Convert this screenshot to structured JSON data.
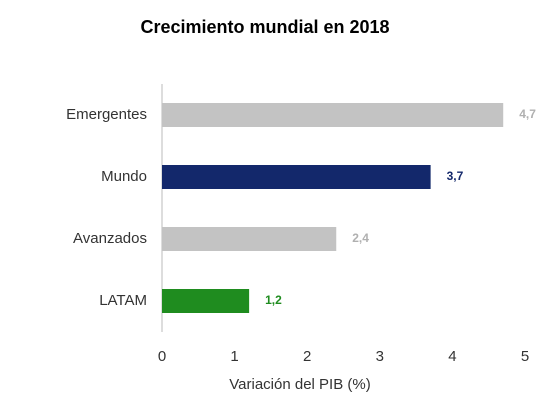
{
  "chart_data": {
    "type": "bar",
    "orientation": "horizontal",
    "title": "Crecimiento mundial en 2018",
    "x_label": "Variación del PIB (%)",
    "categories": [
      "Emergentes",
      "Mundo",
      "Avanzados",
      "LATAM"
    ],
    "values": [
      4.7,
      3.7,
      2.4,
      1.2
    ],
    "value_labels": [
      "4,7",
      "3,7",
      "2,4",
      "1,2"
    ],
    "colors": [
      "#c3c3c3",
      "#13286b",
      "#c3c3c3",
      "#1f8c1f"
    ],
    "label_colors": [
      "#b0b0b0",
      "#13286b",
      "#b0b0b0",
      "#1f8c1f"
    ],
    "xlim": [
      0,
      5
    ],
    "xticks": [
      0,
      1,
      2,
      3,
      4,
      5
    ],
    "grid": false
  }
}
